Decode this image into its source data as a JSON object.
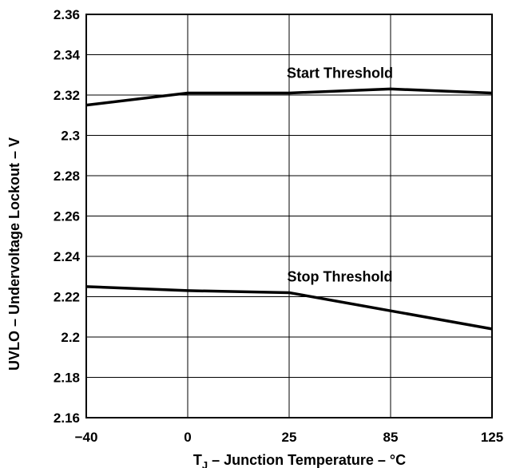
{
  "chart_data": {
    "type": "line",
    "x_tick_labels": [
      "−40",
      "0",
      "25",
      "85",
      "125"
    ],
    "y_ticks": [
      2.16,
      2.18,
      2.2,
      2.22,
      2.24,
      2.26,
      2.28,
      2.3,
      2.32,
      2.34,
      2.36
    ],
    "y_tick_labels": [
      "2.16",
      "2.18",
      "2.2",
      "2.22",
      "2.24",
      "2.26",
      "2.28",
      "2.3",
      "2.32",
      "2.34",
      "2.36"
    ],
    "ylim": [
      2.16,
      2.36
    ],
    "xlabel_main": "T",
    "xlabel_sub": "J",
    "xlabel_rest": " – Junction Temperature – °C",
    "ylabel": "UVLO – Undervoltage Lockout – V",
    "grid": true,
    "x_scale": "categorical (evenly spaced ticks)",
    "series": [
      {
        "name": "Start Threshold",
        "x": [
          "−40",
          "0",
          "25",
          "85",
          "125"
        ],
        "values": [
          2.315,
          2.321,
          2.321,
          2.323,
          2.321
        ]
      },
      {
        "name": "Stop Threshold",
        "x": [
          "−40",
          "0",
          "25",
          "85",
          "125"
        ],
        "values": [
          2.225,
          2.223,
          2.222,
          2.213,
          2.204
        ]
      }
    ]
  }
}
